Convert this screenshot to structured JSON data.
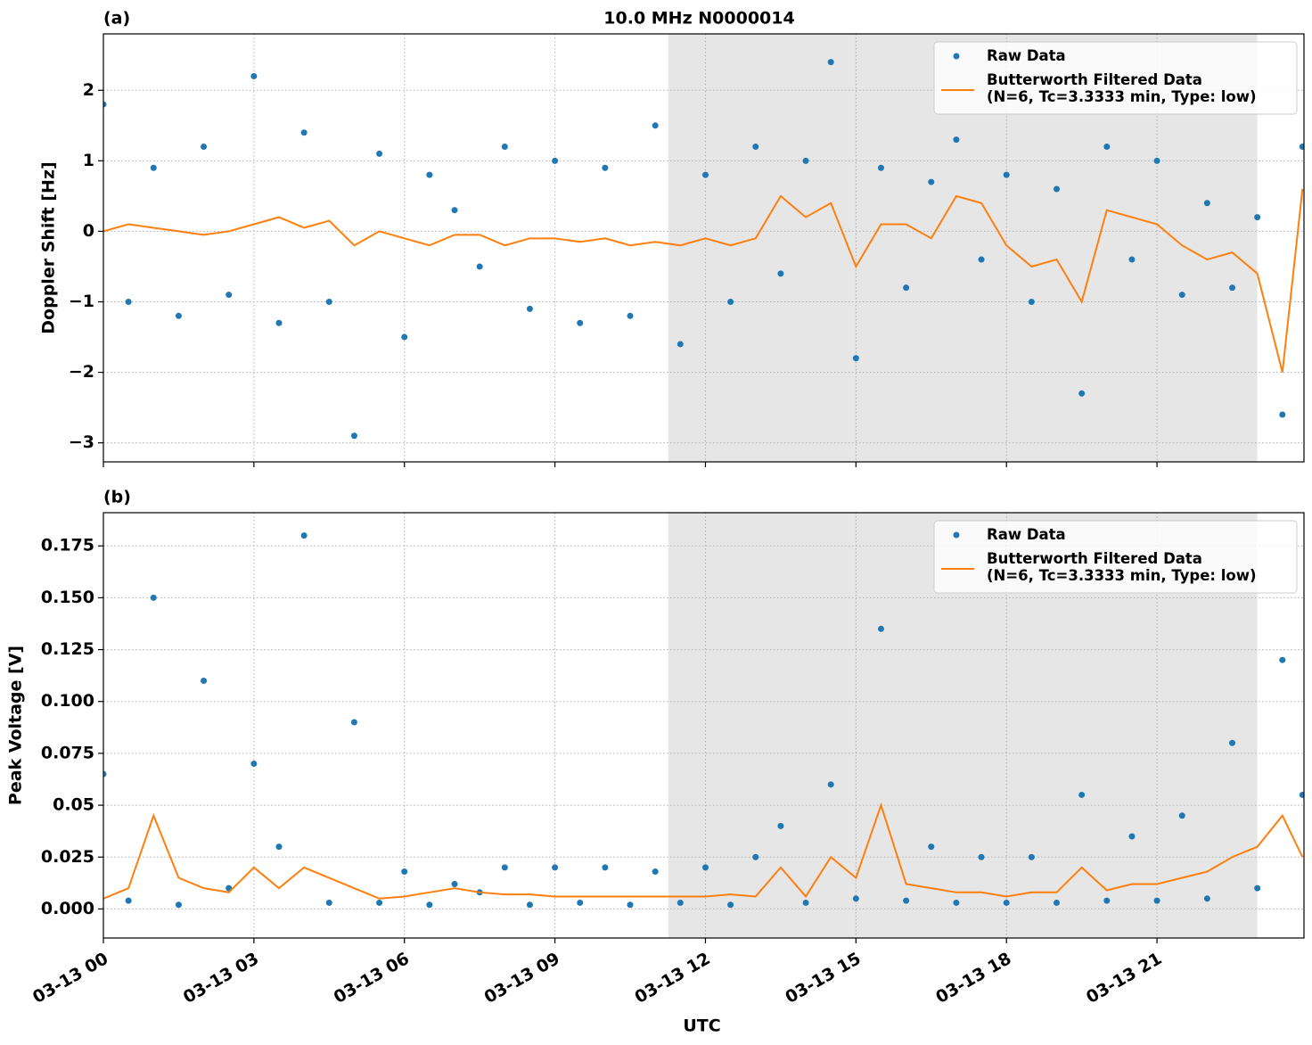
{
  "chart_data": [
    {
      "type": "scatter-line",
      "panel_label": "(a)",
      "title": "10.0 MHz N0000014",
      "ylabel": "Doppler Shift [Hz]",
      "x": [
        0,
        0.5,
        1,
        1.5,
        2,
        2.5,
        3,
        3.5,
        4,
        4.5,
        5,
        5.5,
        6,
        6.5,
        7,
        7.5,
        8,
        8.5,
        9,
        9.5,
        10,
        10.5,
        11,
        11.5,
        12,
        12.5,
        13,
        13.5,
        14,
        14.5,
        15,
        15.5,
        16,
        16.5,
        17,
        17.5,
        18,
        18.5,
        19,
        19.5,
        20,
        20.5,
        21,
        21.5,
        22,
        22.5,
        23,
        23.5,
        23.9
      ],
      "series": [
        {
          "name": "Raw Data",
          "color": "#1f77b4",
          "style": "markers",
          "values": [
            1.8,
            -1.0,
            0.9,
            -1.2,
            1.2,
            -0.9,
            2.2,
            -1.3,
            1.4,
            -1.0,
            -2.9,
            1.1,
            -1.5,
            0.8,
            0.3,
            -0.5,
            1.2,
            -1.1,
            1.0,
            -1.3,
            0.9,
            -1.2,
            1.5,
            -1.6,
            0.8,
            -1.0,
            1.2,
            -0.6,
            1.0,
            2.4,
            -1.8,
            0.9,
            -0.8,
            0.7,
            1.3,
            -0.4,
            0.8,
            -1.0,
            0.6,
            -2.3,
            1.2,
            -0.4,
            1.0,
            -0.9,
            0.4,
            -0.8,
            0.2,
            -2.6,
            1.2
          ]
        },
        {
          "name": "Butterworth Filtered Data\n(N=6, Tc=3.3333 min, Type: low)",
          "color": "#ff7f0e",
          "style": "line",
          "values": [
            0.0,
            0.1,
            0.05,
            0.0,
            -0.05,
            0.0,
            0.1,
            0.2,
            0.05,
            0.15,
            -0.2,
            0.0,
            -0.1,
            -0.2,
            -0.05,
            -0.05,
            -0.2,
            -0.1,
            -0.1,
            -0.15,
            -0.1,
            -0.2,
            -0.15,
            -0.2,
            -0.1,
            -0.2,
            -0.1,
            0.5,
            0.2,
            0.4,
            -0.5,
            0.1,
            0.1,
            -0.1,
            0.5,
            0.4,
            -0.2,
            -0.5,
            -0.4,
            -1.0,
            0.3,
            0.2,
            0.1,
            -0.2,
            -0.4,
            -0.3,
            -0.6,
            -2.0,
            0.6
          ]
        }
      ],
      "xlim": [
        0,
        23.93
      ],
      "ylim": [
        -3.27,
        2.8
      ],
      "xticks": [
        0,
        3,
        6,
        9,
        12,
        15,
        18,
        21
      ],
      "yticks": [
        {
          "value": -3,
          "label": "−3"
        },
        {
          "value": -2,
          "label": "−2"
        },
        {
          "value": -1,
          "label": "−1"
        },
        0,
        1,
        2
      ],
      "shade": [
        11.26,
        23.0
      ],
      "grid": true,
      "legend": "upper right"
    },
    {
      "type": "scatter-line",
      "panel_label": "(b)",
      "ylabel": "Peak Voltage [V]",
      "xlabel": "UTC",
      "x": [
        0,
        0.5,
        1,
        1.5,
        2,
        2.5,
        3,
        3.5,
        4,
        4.5,
        5,
        5.5,
        6,
        6.5,
        7,
        7.5,
        8,
        8.5,
        9,
        9.5,
        10,
        10.5,
        11,
        11.5,
        12,
        12.5,
        13,
        13.5,
        14,
        14.5,
        15,
        15.5,
        16,
        16.5,
        17,
        17.5,
        18,
        18.5,
        19,
        19.5,
        20,
        20.5,
        21,
        21.5,
        22,
        22.5,
        23,
        23.5,
        23.9
      ],
      "series": [
        {
          "name": "Raw Data",
          "color": "#1f77b4",
          "style": "markers",
          "values": [
            0.065,
            0.004,
            0.15,
            0.002,
            0.11,
            0.01,
            0.07,
            0.03,
            0.18,
            0.003,
            0.09,
            0.003,
            0.018,
            0.002,
            0.012,
            0.008,
            0.02,
            0.002,
            0.02,
            0.003,
            0.02,
            0.002,
            0.018,
            0.003,
            0.02,
            0.002,
            0.025,
            0.04,
            0.003,
            0.06,
            0.005,
            0.135,
            0.004,
            0.03,
            0.003,
            0.025,
            0.003,
            0.025,
            0.003,
            0.055,
            0.004,
            0.035,
            0.004,
            0.045,
            0.005,
            0.08,
            0.01,
            0.12,
            0.055
          ]
        },
        {
          "name": "Butterworth Filtered Data\n(N=6, Tc=3.3333 min, Type: low)",
          "color": "#ff7f0e",
          "style": "line",
          "values": [
            0.005,
            0.01,
            0.045,
            0.015,
            0.01,
            0.008,
            0.02,
            0.01,
            0.02,
            0.015,
            0.01,
            0.005,
            0.006,
            0.008,
            0.01,
            0.008,
            0.007,
            0.007,
            0.006,
            0.006,
            0.006,
            0.006,
            0.006,
            0.006,
            0.006,
            0.007,
            0.006,
            0.02,
            0.006,
            0.025,
            0.015,
            0.05,
            0.012,
            0.01,
            0.008,
            0.008,
            0.006,
            0.008,
            0.008,
            0.02,
            0.009,
            0.012,
            0.012,
            0.015,
            0.018,
            0.025,
            0.03,
            0.045,
            0.025
          ]
        }
      ],
      "xlim": [
        0,
        23.93
      ],
      "ylim": [
        -0.014,
        0.191
      ],
      "xticks": [
        {
          "value": 0,
          "label": "03-13 00"
        },
        {
          "value": 3,
          "label": "03-13 03"
        },
        {
          "value": 6,
          "label": "03-13 06"
        },
        {
          "value": 9,
          "label": "03-13 09"
        },
        {
          "value": 12,
          "label": "03-13 12"
        },
        {
          "value": 15,
          "label": "03-13 15"
        },
        {
          "value": 18,
          "label": "03-13 18"
        },
        {
          "value": 21,
          "label": "03-13 21"
        }
      ],
      "yticks": [
        {
          "value": 0,
          "label": "0.000"
        },
        0.025,
        0.05,
        0.075,
        {
          "value": 0.1,
          "label": "0.100"
        },
        0.125,
        {
          "value": 0.15,
          "label": "0.150"
        },
        0.175
      ],
      "shade": [
        11.26,
        23.0
      ],
      "grid": true,
      "legend": "upper right"
    }
  ]
}
